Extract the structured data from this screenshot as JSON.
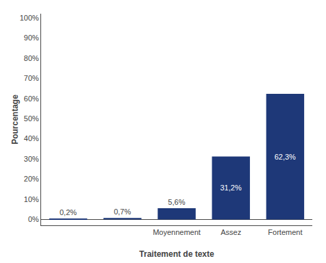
{
  "chart_data": {
    "type": "bar",
    "categories": [
      null,
      null,
      "Moyennement",
      "Assez",
      "Fortement"
    ],
    "values": [
      0.2,
      0.7,
      5.6,
      31.2,
      62.3
    ],
    "value_labels": [
      "0,2%",
      "0,7%",
      "5,6%",
      "31,2%",
      "62,3%"
    ],
    "data_labels": true,
    "color": "#1E3878",
    "xlabel": "Traitement de texte",
    "ylabel": "Pourcentage",
    "ylim": [
      -2.925,
      102
    ],
    "yticks": [
      {
        "value": 0,
        "label": "0%"
      },
      {
        "value": 10,
        "label": "10%"
      },
      {
        "value": 20,
        "label": "20%"
      },
      {
        "value": 30,
        "label": "30%"
      },
      {
        "value": 40,
        "label": "40%"
      },
      {
        "value": 50,
        "label": "50%"
      },
      {
        "value": 60,
        "label": "60%"
      },
      {
        "value": 70,
        "label": "70%"
      },
      {
        "value": 80,
        "label": "80%"
      },
      {
        "value": 90,
        "label": "90%"
      },
      {
        "value": 100,
        "label": "100%"
      }
    ],
    "grid": false
  }
}
